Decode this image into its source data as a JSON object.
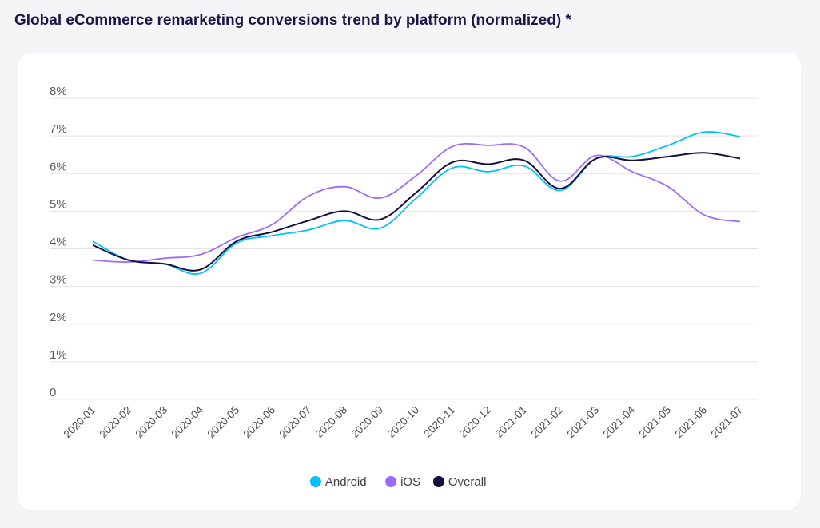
{
  "chart_data": {
    "type": "line",
    "title": "Global eCommerce remarketing conversions trend by platform (normalized) *",
    "xlabel": "",
    "ylabel": "",
    "ylim": [
      0,
      8
    ],
    "y_ticks": [
      "0",
      "1%",
      "2%",
      "3%",
      "4%",
      "5%",
      "6%",
      "7%",
      "8%"
    ],
    "categories": [
      "2020-01",
      "2020-02",
      "2020-03",
      "2020-04",
      "2020-05",
      "2020-06",
      "2020-07",
      "2020-08",
      "2020-09",
      "2020-10",
      "2020-11",
      "2020-12",
      "2021-01",
      "2021-02",
      "2021-03",
      "2021-04",
      "2021-05",
      "2021-06",
      "2021-07"
    ],
    "series": [
      {
        "name": "Android",
        "color": "#00c2ff",
        "values": [
          4.2,
          3.7,
          3.6,
          3.35,
          4.15,
          4.35,
          4.5,
          4.75,
          4.55,
          5.35,
          6.15,
          6.05,
          6.2,
          5.55,
          6.4,
          6.45,
          6.75,
          7.1,
          6.98
        ]
      },
      {
        "name": "iOS",
        "color": "#9d6cff",
        "values": [
          3.7,
          3.65,
          3.75,
          3.85,
          4.3,
          4.65,
          5.4,
          5.65,
          5.35,
          5.95,
          6.72,
          6.75,
          6.7,
          5.8,
          6.48,
          6.05,
          5.65,
          4.9,
          4.72
        ]
      },
      {
        "name": "Overall",
        "color": "#170d3f",
        "values": [
          4.1,
          3.7,
          3.6,
          3.45,
          4.2,
          4.45,
          4.75,
          5.0,
          4.78,
          5.5,
          6.3,
          6.25,
          6.35,
          5.6,
          6.4,
          6.35,
          6.45,
          6.55,
          6.4
        ]
      }
    ],
    "legend_position": "bottom-center"
  }
}
